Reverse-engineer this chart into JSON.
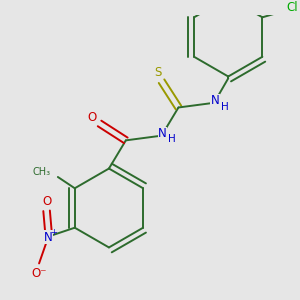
{
  "background_color": "#e6e6e6",
  "bond_color": "#2d6b2d",
  "atom_colors": {
    "C": "#2d6b2d",
    "N": "#0000cc",
    "O": "#cc0000",
    "S": "#999900",
    "Cl": "#00aa00",
    "H": "#0000cc"
  },
  "figsize": [
    3.0,
    3.0
  ],
  "dpi": 100,
  "lw": 1.4,
  "font_size_atom": 8.5,
  "font_size_small": 7.5
}
